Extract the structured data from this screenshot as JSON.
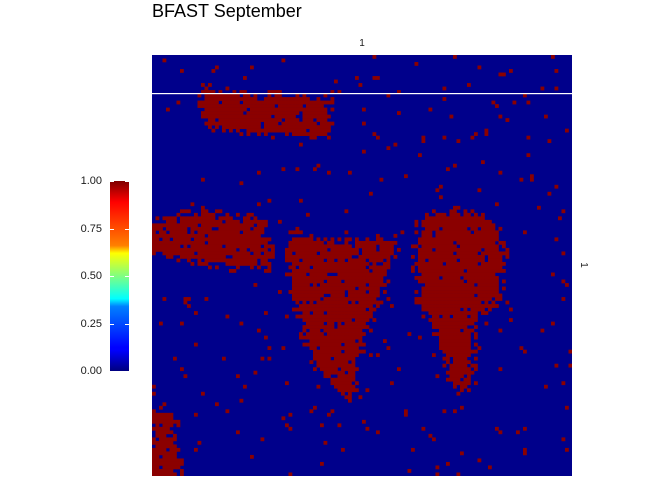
{
  "title": "BFAST September",
  "chart_data": {
    "type": "heatmap",
    "title": "BFAST September",
    "facet_top": "1",
    "facet_right": "1",
    "grid": false,
    "legend": {
      "placement": "left",
      "colormap": "jet",
      "range": [
        0,
        1
      ],
      "ticks": [
        "1.00",
        "0.75",
        "0.50",
        "0.25",
        "0.00"
      ],
      "tick_values": [
        1.0,
        0.75,
        0.5,
        0.25,
        0.0
      ]
    },
    "colors": {
      "low": "#00008b",
      "high": "#8b0000",
      "separator": "#ffffff"
    },
    "value_scale": "binary 0/1 change map",
    "grid_resolution": [
      120,
      120
    ]
  }
}
